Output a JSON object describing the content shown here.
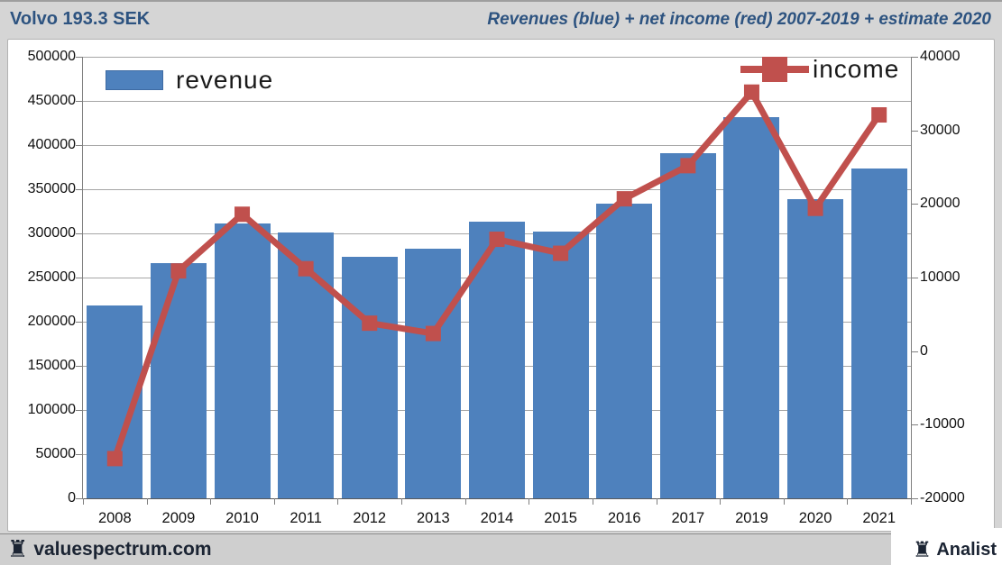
{
  "header": {
    "left_title": "Volvo 193.3 SEK",
    "right_title": "Revenues (blue) + net income (red) 2007-2019 + estimate 2020"
  },
  "legend": {
    "revenue_label": "revenue",
    "income_label": "income"
  },
  "footer": {
    "left_brand": "valuespectrum.com",
    "right_brand": "Analist",
    "rook_icon": "♜"
  },
  "colors": {
    "bar_blue": "#4e81bd",
    "line_red": "#c0504d",
    "title_blue": "#2d5380",
    "grid_gray": "#a6a6a6",
    "panel_white": "#ffffff",
    "page_gray": "#d5d5d5"
  },
  "chart_data": {
    "type": "bar",
    "subtype": "bar+line combo, dual y-axis",
    "title": "Revenues (blue) + net income (red) 2007-2019 + estimate 2020",
    "categories": [
      "2008",
      "2009",
      "2010",
      "2011",
      "2012",
      "2013",
      "2014",
      "2015",
      "2016",
      "2017",
      "2019",
      "2020",
      "2021"
    ],
    "series": [
      {
        "name": "revenue",
        "type": "bar",
        "axis": "left",
        "color": "#4e81bd",
        "values": [
          218000,
          266000,
          311000,
          301000,
          273000,
          283000,
          313000,
          302000,
          334000,
          391000,
          432000,
          339000,
          373000
        ]
      },
      {
        "name": "income",
        "type": "line",
        "axis": "right",
        "color": "#c0504d",
        "marker": "square",
        "values": [
          -14600,
          10900,
          18600,
          11200,
          3800,
          2400,
          15200,
          13300,
          20700,
          25200,
          35200,
          19400,
          32100
        ]
      }
    ],
    "left_axis": {
      "min": 0,
      "max": 500000,
      "ticks": [
        "500000",
        "450000",
        "400000",
        "350000",
        "300000",
        "250000",
        "200000",
        "150000",
        "100000",
        "50000",
        "0"
      ]
    },
    "right_axis": {
      "min": -20000,
      "max": 40000,
      "ticks": [
        "40000",
        "30000",
        "20000",
        "10000",
        "0",
        "-10000",
        "-20000"
      ]
    },
    "grid": true,
    "legend_position": "revenue top-left, income top-right"
  }
}
